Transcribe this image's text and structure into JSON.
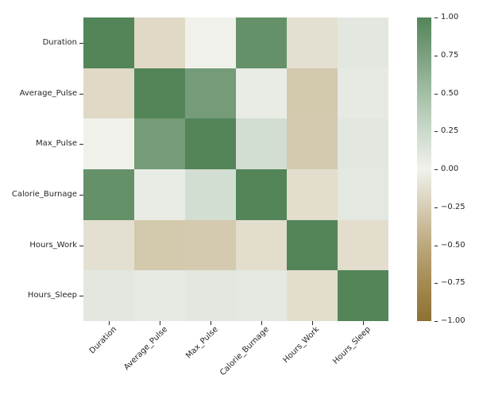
{
  "figure": {
    "background": "#ffffff",
    "text_color": "#262626",
    "tick_color": "#262626"
  },
  "chart_data": {
    "type": "heatmap",
    "title": "",
    "xlabel": "",
    "ylabel": "",
    "categories": [
      "Duration",
      "Average_Pulse",
      "Max_Pulse",
      "Calorie_Burnage",
      "Hours_Work",
      "Hours_Sleep"
    ],
    "matrix": [
      [
        1.0,
        -0.17,
        0.0,
        0.89,
        -0.12,
        0.1
      ],
      [
        -0.17,
        1.0,
        0.79,
        0.05,
        -0.28,
        0.07
      ],
      [
        0.0,
        0.79,
        1.0,
        0.2,
        -0.27,
        0.1
      ],
      [
        0.89,
        0.05,
        0.2,
        1.0,
        -0.14,
        0.09
      ],
      [
        -0.12,
        -0.28,
        -0.27,
        -0.14,
        1.0,
        -0.14
      ],
      [
        0.1,
        0.07,
        0.1,
        0.09,
        -0.14,
        1.0
      ]
    ],
    "vmin": -1.0,
    "vmax": 1.0,
    "grid": false,
    "cell_annotations": false,
    "x_tick_rotation_deg": 45,
    "colorbar": {
      "position": "right",
      "ticks": [
        1.0,
        0.75,
        0.5,
        0.25,
        0.0,
        -0.25,
        -0.5,
        -0.75,
        -1.0
      ],
      "tick_labels": [
        "1.00",
        "0.75",
        "0.50",
        "0.25",
        "0.00",
        "−0.25",
        "−0.50",
        "−0.75",
        "−1.00"
      ]
    },
    "colormap_stops": [
      {
        "value": -1.0,
        "color": "#8D7033"
      },
      {
        "value": -0.75,
        "color": "#A58B52"
      },
      {
        "value": -0.5,
        "color": "#BCA87D"
      },
      {
        "value": -0.25,
        "color": "#D6CDB4"
      },
      {
        "value": 0.0,
        "color": "#F1F1EC"
      },
      {
        "value": 0.25,
        "color": "#CBD9CB"
      },
      {
        "value": 0.5,
        "color": "#A3BFA6"
      },
      {
        "value": 0.75,
        "color": "#7BA07F"
      },
      {
        "value": 1.0,
        "color": "#538558"
      }
    ]
  }
}
